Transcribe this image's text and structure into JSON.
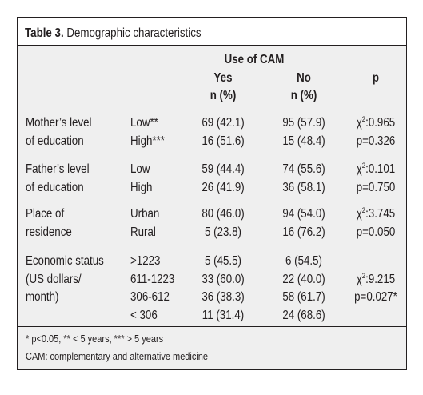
{
  "table": {
    "title_label": "Table 3.",
    "title_text": " Demographic characteristics",
    "group_header": "Use of CAM",
    "col_yes": "Yes",
    "col_no": "No",
    "col_p": "p",
    "col_n_yes": "n (%)",
    "col_n_no": "n (%)",
    "sections": [
      {
        "label_lines": [
          "Mother’s level",
          "of education"
        ],
        "rows": [
          {
            "category": "Low**",
            "yes": "69 (42.1)",
            "no": "95 (57.9)",
            "p": "χ2:0.965"
          },
          {
            "category": "High***",
            "yes": "16 (51.6)",
            "no": "15 (48.4)",
            "p": "p=0.326"
          }
        ]
      },
      {
        "label_lines": [
          "Father’s level",
          "of education"
        ],
        "rows": [
          {
            "category": "Low",
            "yes": "59 (44.4)",
            "no": "74 (55.6)",
            "p": "χ2:0.101"
          },
          {
            "category": "High",
            "yes": "26 (41.9)",
            "no": "36 (58.1)",
            "p": "p=0.750"
          }
        ]
      },
      {
        "label_lines": [
          "Place of",
          "residence"
        ],
        "rows": [
          {
            "category": "Urban",
            "yes": "80 (46.0)",
            "no": "94 (54.0)",
            "p": "χ2:3.745"
          },
          {
            "category": "Rural",
            "yes": "5 (23.8)",
            "no": "16 (76.2)",
            "p": "p=0.050"
          }
        ]
      },
      {
        "label_lines": [
          "Economic status",
          "(US dollars/",
          "month)"
        ],
        "rows": [
          {
            "category": ">1223",
            "yes": "5 (45.5)",
            "no": "6 (54.5)",
            "p": ""
          },
          {
            "category": "611-1223",
            "yes": "33 (60.0)",
            "no": "22 (40.0)",
            "p": "χ2:9.215"
          },
          {
            "category": "306-612",
            "yes": "36 (38.3)",
            "no": "58 (61.7)",
            "p": "p=0.027*"
          },
          {
            "category": "< 306",
            "yes": "11 (31.4)",
            "no": "24 (68.6)",
            "p": ""
          }
        ]
      }
    ],
    "footnote_significance": "* p<0.05, ** < 5 years, *** > 5 years",
    "footnote_abbreviation": "CAM: complementary and alternative medicine"
  }
}
